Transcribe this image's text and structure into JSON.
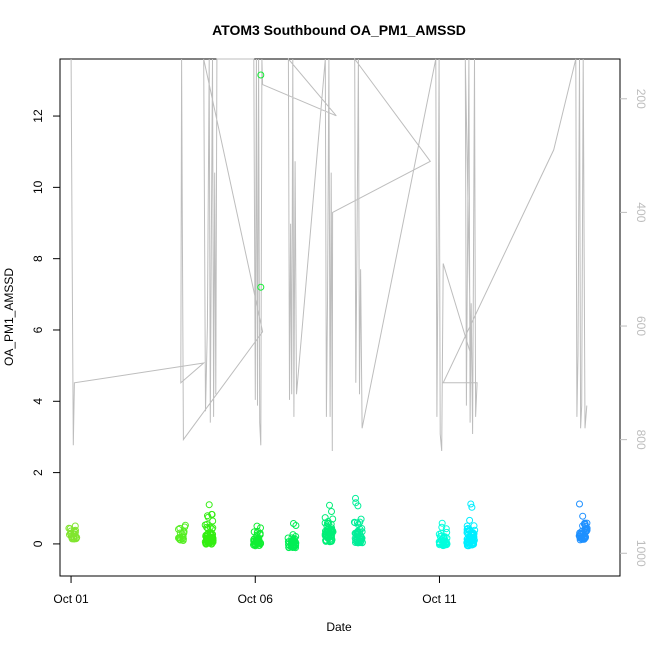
{
  "chart_data": {
    "type": "scatter",
    "title": "ATOM3 Southbound OA_PM1_AMSSD",
    "xlabel": "Date",
    "ylabel": "OA_PM1_AMSSD",
    "x_ticks": [
      {
        "day": 1,
        "label": "Oct 01"
      },
      {
        "day": 6,
        "label": "Oct 06"
      },
      {
        "day": 11,
        "label": "Oct 11"
      }
    ],
    "y_ticks": [
      0,
      2,
      4,
      6,
      8,
      10,
      12
    ],
    "right_axis_ticks": [
      200,
      400,
      600,
      800,
      1000
    ],
    "xlim": [
      0.7,
      15.9
    ],
    "ylim": [
      -0.9,
      13.6
    ],
    "right_ylim": [
      130,
      1040
    ],
    "grid": false,
    "legend": "none",
    "colors": {
      "altitude_line": "#bdbdbd",
      "point_palette": [
        "#7fe52f",
        "#33ee22",
        "#00ee44",
        "#00ffcc",
        "#00ddff",
        "#1e90ff"
      ]
    },
    "point_clusters": [
      {
        "day": 1.05,
        "center": 0.22,
        "spread": 0.28,
        "n": 22,
        "color": "#80e52e"
      },
      {
        "day": 4.0,
        "center": 0.18,
        "spread": 0.25,
        "n": 18,
        "color": "#55ee22"
      },
      {
        "day": 4.75,
        "center": 0.15,
        "spread": 0.45,
        "n": 60,
        "color": "#33ee11"
      },
      {
        "day": 6.05,
        "center": 0.05,
        "spread": 0.3,
        "n": 40,
        "color": "#11ee33"
      },
      {
        "day": 7.0,
        "center": 0.0,
        "spread": 0.3,
        "n": 40,
        "color": "#00ee55"
      },
      {
        "day": 8.0,
        "center": 0.25,
        "spread": 0.6,
        "n": 55,
        "color": "#00ee77"
      },
      {
        "day": 8.8,
        "center": 0.2,
        "spread": 0.5,
        "n": 45,
        "color": "#00ee99"
      },
      {
        "day": 11.1,
        "center": 0.05,
        "spread": 0.3,
        "n": 35,
        "color": "#00ffdd"
      },
      {
        "day": 11.85,
        "center": 0.1,
        "spread": 0.45,
        "n": 55,
        "color": "#00eeff"
      },
      {
        "day": 14.9,
        "center": 0.25,
        "spread": 0.4,
        "n": 40,
        "color": "#1e90ff"
      }
    ],
    "highlight_points": [
      {
        "day": 6.15,
        "y": 13.15,
        "color": "#11ee33"
      },
      {
        "day": 6.15,
        "y": 7.2,
        "color": "#11ee33"
      },
      {
        "day": 4.75,
        "y": 1.1,
        "color": "#33ee11"
      },
      {
        "day": 14.8,
        "y": 1.12,
        "color": "#1e90ff"
      },
      {
        "day": 11.85,
        "y": 1.12,
        "color": "#00eeff"
      }
    ],
    "altitude_series": [
      [
        1.0,
        130
      ],
      [
        1.03,
        490
      ],
      [
        1.06,
        810
      ],
      [
        1.09,
        700
      ],
      [
        4.6,
        665
      ],
      [
        3.98,
        700
      ],
      [
        4.0,
        130
      ],
      [
        4.02,
        410
      ],
      [
        4.05,
        800
      ],
      [
        6.2,
        610
      ],
      [
        4.6,
        130
      ],
      [
        4.65,
        750
      ],
      [
        4.7,
        600
      ],
      [
        4.75,
        130
      ],
      [
        4.78,
        770
      ],
      [
        4.81,
        430
      ],
      [
        4.84,
        130
      ],
      [
        4.87,
        760
      ],
      [
        4.9,
        330
      ],
      [
        4.93,
        720
      ],
      [
        4.96,
        130
      ],
      [
        5.96,
        130
      ],
      [
        6.0,
        730
      ],
      [
        6.03,
        130
      ],
      [
        6.06,
        740
      ],
      [
        6.09,
        130
      ],
      [
        6.12,
        770
      ],
      [
        6.15,
        810
      ],
      [
        6.18,
        130
      ],
      [
        6.2,
        175
      ],
      [
        8.2,
        230
      ],
      [
        6.9,
        130
      ],
      [
        6.93,
        730
      ],
      [
        6.96,
        420
      ],
      [
        6.99,
        720
      ],
      [
        7.02,
        130
      ],
      [
        7.05,
        760
      ],
      [
        7.08,
        310
      ],
      [
        7.12,
        720
      ],
      [
        7.9,
        130
      ],
      [
        7.93,
        760
      ],
      [
        7.96,
        560
      ],
      [
        8.0,
        130
      ],
      [
        8.03,
        760
      ],
      [
        8.06,
        330
      ],
      [
        8.09,
        820
      ],
      [
        8.1,
        400
      ],
      [
        10.75,
        310
      ],
      [
        8.7,
        130
      ],
      [
        8.73,
        700
      ],
      [
        8.76,
        470
      ],
      [
        8.8,
        130
      ],
      [
        8.83,
        720
      ],
      [
        8.86,
        500
      ],
      [
        8.9,
        780
      ],
      [
        10.9,
        130
      ],
      [
        10.93,
        760
      ],
      [
        10.96,
        490
      ],
      [
        10.99,
        130
      ],
      [
        11.02,
        790
      ],
      [
        11.06,
        820
      ],
      [
        11.1,
        490
      ],
      [
        11.85,
        650
      ],
      [
        11.7,
        130
      ],
      [
        11.73,
        740
      ],
      [
        11.76,
        470
      ],
      [
        11.8,
        130
      ],
      [
        11.83,
        770
      ],
      [
        11.86,
        560
      ],
      [
        11.9,
        790
      ],
      [
        11.95,
        130
      ],
      [
        11.98,
        760
      ],
      [
        12.02,
        700
      ],
      [
        11.1,
        700
      ],
      [
        14.1,
        290
      ],
      [
        14.7,
        130
      ],
      [
        14.73,
        760
      ],
      [
        14.76,
        650
      ],
      [
        14.8,
        130
      ],
      [
        14.83,
        780
      ],
      [
        14.86,
        740
      ],
      [
        14.9,
        130
      ],
      [
        14.95,
        780
      ],
      [
        15.0,
        740
      ]
    ]
  }
}
